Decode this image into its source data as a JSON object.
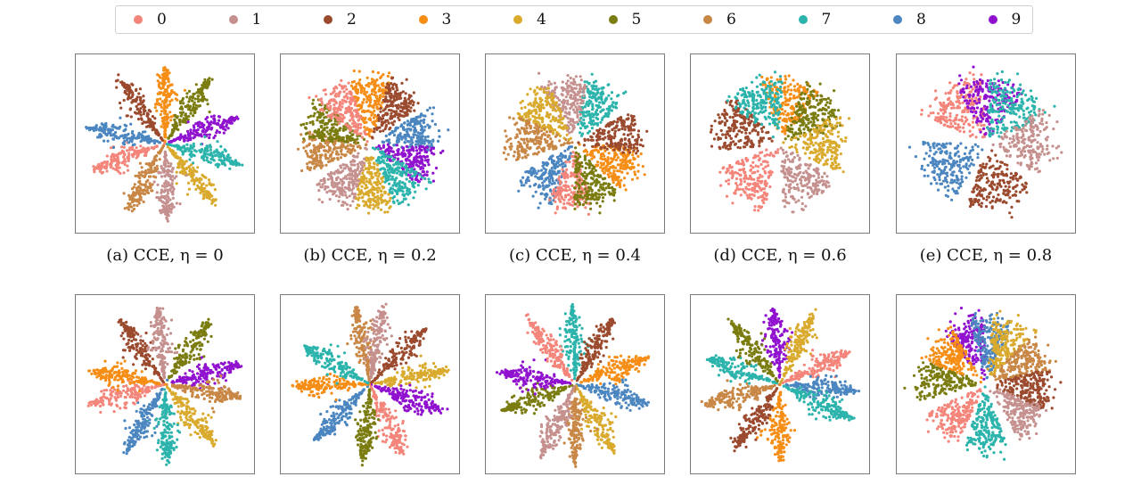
{
  "legend": {
    "classes": [
      {
        "label": "0",
        "color": "#f4857a"
      },
      {
        "label": "1",
        "color": "#c5918f"
      },
      {
        "label": "2",
        "color": "#9b4a2e"
      },
      {
        "label": "3",
        "color": "#f68d14"
      },
      {
        "label": "4",
        "color": "#d9aa2d"
      },
      {
        "label": "5",
        "color": "#7b7c10"
      },
      {
        "label": "6",
        "color": "#c98746"
      },
      {
        "label": "7",
        "color": "#2cb4ac"
      },
      {
        "label": "8",
        "color": "#4b86c0"
      },
      {
        "label": "9",
        "color": "#9012cf"
      }
    ]
  },
  "chart_data": [
    {
      "type": "scatter",
      "caption": "(a) CCE, η = 0",
      "style": "petal",
      "clusters": [
        {
          "class": "3",
          "angle_deg": 90
        },
        {
          "class": "5",
          "angle_deg": 55
        },
        {
          "class": "9",
          "angle_deg": 20
        },
        {
          "class": "7",
          "angle_deg": -15
        },
        {
          "class": "4",
          "angle_deg": -50
        },
        {
          "class": "1",
          "angle_deg": -88
        },
        {
          "class": "6",
          "angle_deg": -120
        },
        {
          "class": "0",
          "angle_deg": -160
        },
        {
          "class": "8",
          "angle_deg": 168
        },
        {
          "class": "2",
          "angle_deg": 125
        }
      ]
    },
    {
      "type": "scatter",
      "caption": "(b) CCE, η = 0.2",
      "style": "disk",
      "clusters": [
        {
          "class": "3",
          "angle_deg": 90
        },
        {
          "class": "2",
          "angle_deg": 55
        },
        {
          "class": "8",
          "angle_deg": 12
        },
        {
          "class": "9",
          "angle_deg": -22
        },
        {
          "class": "7",
          "angle_deg": -50
        },
        {
          "class": "4",
          "angle_deg": -88
        },
        {
          "class": "1",
          "angle_deg": -125
        },
        {
          "class": "6",
          "angle_deg": -172
        },
        {
          "class": "5",
          "angle_deg": 158
        },
        {
          "class": "0",
          "angle_deg": 128
        }
      ]
    },
    {
      "type": "scatter",
      "caption": "(c) CCE, η = 0.4",
      "style": "disk",
      "clusters": [
        {
          "class": "7",
          "angle_deg": 60
        },
        {
          "class": "1",
          "angle_deg": 100
        },
        {
          "class": "4",
          "angle_deg": 135
        },
        {
          "class": "6",
          "angle_deg": 175
        },
        {
          "class": "8",
          "angle_deg": -130
        },
        {
          "class": "0",
          "angle_deg": -95
        },
        {
          "class": "5",
          "angle_deg": -70
        },
        {
          "class": "3",
          "angle_deg": -25
        },
        {
          "class": "2",
          "angle_deg": 10
        }
      ]
    },
    {
      "type": "scatter",
      "caption": "(d) CCE, η = 0.6",
      "style": "disk",
      "clusters": [
        {
          "class": "3",
          "angle_deg": 80
        },
        {
          "class": "5",
          "angle_deg": 40
        },
        {
          "class": "4",
          "angle_deg": 0
        },
        {
          "class": "1",
          "angle_deg": -60
        },
        {
          "class": "0",
          "angle_deg": -130
        },
        {
          "class": "2",
          "angle_deg": 160
        },
        {
          "class": "7",
          "angle_deg": 115
        }
      ]
    },
    {
      "type": "scatter",
      "caption": "(e) CCE, η = 0.8",
      "style": "disk",
      "clusters": [
        {
          "class": "0",
          "angle_deg": 125
        },
        {
          "class": "9",
          "angle_deg": 85
        },
        {
          "class": "7",
          "angle_deg": 55
        },
        {
          "class": "1",
          "angle_deg": 0
        },
        {
          "class": "2",
          "angle_deg": -75
        },
        {
          "class": "8",
          "angle_deg": -150
        }
      ]
    },
    {
      "type": "scatter",
      "caption": "",
      "style": "petal",
      "clusters": [
        {
          "class": "2",
          "angle_deg": 125
        },
        {
          "class": "1",
          "angle_deg": 95
        },
        {
          "class": "5",
          "angle_deg": 55
        },
        {
          "class": "9",
          "angle_deg": 15
        },
        {
          "class": "6",
          "angle_deg": -10
        },
        {
          "class": "4",
          "angle_deg": -50
        },
        {
          "class": "7",
          "angle_deg": -88
        },
        {
          "class": "8",
          "angle_deg": -120
        },
        {
          "class": "0",
          "angle_deg": -165
        },
        {
          "class": "3",
          "angle_deg": 170
        }
      ]
    },
    {
      "type": "scatter",
      "caption": "",
      "style": "petal",
      "clusters": [
        {
          "class": "6",
          "angle_deg": 100
        },
        {
          "class": "1",
          "angle_deg": 80
        },
        {
          "class": "2",
          "angle_deg": 45
        },
        {
          "class": "4",
          "angle_deg": 10
        },
        {
          "class": "9",
          "angle_deg": -20
        },
        {
          "class": "0",
          "angle_deg": -65
        },
        {
          "class": "5",
          "angle_deg": -95
        },
        {
          "class": "8",
          "angle_deg": -135
        },
        {
          "class": "3",
          "angle_deg": -178
        },
        {
          "class": "7",
          "angle_deg": 150
        }
      ]
    },
    {
      "type": "scatter",
      "caption": "",
      "style": "petal",
      "clusters": [
        {
          "class": "7",
          "angle_deg": 92
        },
        {
          "class": "2",
          "angle_deg": 60
        },
        {
          "class": "3",
          "angle_deg": 20
        },
        {
          "class": "8",
          "angle_deg": -15
        },
        {
          "class": "4",
          "angle_deg": -60
        },
        {
          "class": "6",
          "angle_deg": -90
        },
        {
          "class": "1",
          "angle_deg": -115
        },
        {
          "class": "5",
          "angle_deg": -160
        },
        {
          "class": "9",
          "angle_deg": 170
        },
        {
          "class": "0",
          "angle_deg": 125
        }
      ]
    },
    {
      "type": "scatter",
      "caption": "",
      "style": "petal",
      "clusters": [
        {
          "class": "9",
          "angle_deg": 95
        },
        {
          "class": "4",
          "angle_deg": 65
        },
        {
          "class": "0",
          "angle_deg": 25
        },
        {
          "class": "8",
          "angle_deg": -5
        },
        {
          "class": "7",
          "angle_deg": -25
        },
        {
          "class": "3",
          "angle_deg": -90
        },
        {
          "class": "2",
          "angle_deg": -125
        },
        {
          "class": "6",
          "angle_deg": -165
        },
        {
          "class": "7",
          "angle_deg": 160
        },
        {
          "class": "5",
          "angle_deg": 128
        }
      ]
    },
    {
      "type": "scatter",
      "caption": "",
      "style": "disk",
      "clusters": [
        {
          "class": "9",
          "angle_deg": 110
        },
        {
          "class": "8",
          "angle_deg": 85
        },
        {
          "class": "4",
          "angle_deg": 65
        },
        {
          "class": "6",
          "angle_deg": 30
        },
        {
          "class": "2",
          "angle_deg": -5
        },
        {
          "class": "1",
          "angle_deg": -40
        },
        {
          "class": "7",
          "angle_deg": -90
        },
        {
          "class": "0",
          "angle_deg": -135
        },
        {
          "class": "5",
          "angle_deg": 175
        },
        {
          "class": "3",
          "angle_deg": 140
        }
      ]
    }
  ]
}
